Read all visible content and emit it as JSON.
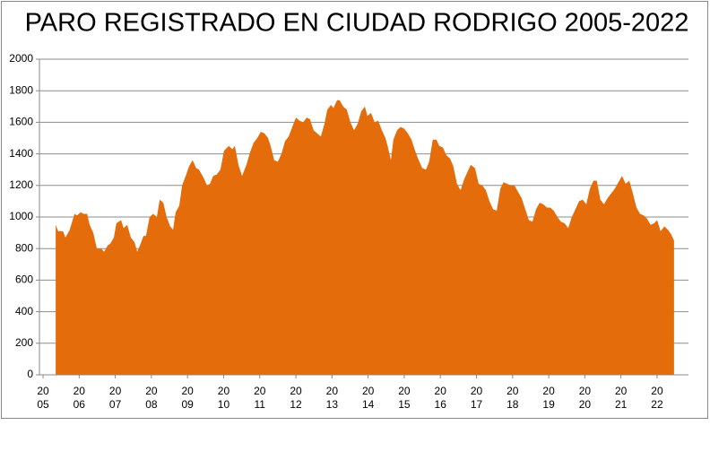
{
  "chart_data": {
    "type": "area",
    "title": "PARO REGISTRADO EN CIUDAD RODRIGO 2005-2022",
    "color": "#e46c0a",
    "grid": true,
    "xlim": [
      2004.9,
      2022.87
    ],
    "ylim": [
      0,
      2000
    ],
    "yticks": [
      0,
      200,
      400,
      600,
      800,
      1000,
      1200,
      1400,
      1600,
      1800,
      2000
    ],
    "xticks": [
      {
        "value": 2005,
        "label": [
          "20",
          "05"
        ]
      },
      {
        "value": 2006,
        "label": [
          "20",
          "06"
        ]
      },
      {
        "value": 2007,
        "label": [
          "20",
          "07"
        ]
      },
      {
        "value": 2008,
        "label": [
          "20",
          "08"
        ]
      },
      {
        "value": 2009,
        "label": [
          "20",
          "09"
        ]
      },
      {
        "value": 2010,
        "label": [
          "20",
          "10"
        ]
      },
      {
        "value": 2011,
        "label": [
          "20",
          "11"
        ]
      },
      {
        "value": 2012,
        "label": [
          "20",
          "12"
        ]
      },
      {
        "value": 2013,
        "label": [
          "20",
          "13"
        ]
      },
      {
        "value": 2014,
        "label": [
          "20",
          "14"
        ]
      },
      {
        "value": 2015,
        "label": [
          "20",
          "15"
        ]
      },
      {
        "value": 2016,
        "label": [
          "20",
          "16"
        ]
      },
      {
        "value": 2017,
        "label": [
          "20",
          "17"
        ]
      },
      {
        "value": 2018,
        "label": [
          "20",
          "18"
        ]
      },
      {
        "value": 2019,
        "label": [
          "20",
          "19"
        ]
      },
      {
        "value": 2020,
        "label": [
          "20",
          "20"
        ]
      },
      {
        "value": 2021,
        "label": [
          "20",
          "21"
        ]
      },
      {
        "value": 2022,
        "label": [
          "20",
          "22"
        ]
      }
    ],
    "x": [
      2005.35,
      2005.42,
      2005.55,
      2005.62,
      2005.74,
      2005.87,
      2005.94,
      2006.04,
      2006.12,
      2006.22,
      2006.29,
      2006.39,
      2006.49,
      2006.61,
      2006.69,
      2006.79,
      2006.86,
      2006.96,
      2007.03,
      2007.16,
      2007.23,
      2007.33,
      2007.43,
      2007.53,
      2007.61,
      2007.7,
      2007.78,
      2007.85,
      2007.95,
      2008.05,
      2008.15,
      2008.23,
      2008.33,
      2008.42,
      2008.52,
      2008.6,
      2008.67,
      2008.77,
      2008.85,
      2008.95,
      2009.04,
      2009.14,
      2009.24,
      2009.32,
      2009.44,
      2009.54,
      2009.62,
      2009.71,
      2009.81,
      2009.91,
      2010.01,
      2010.14,
      2010.24,
      2010.31,
      2010.41,
      2010.51,
      2010.63,
      2010.73,
      2010.83,
      2010.93,
      2011.03,
      2011.13,
      2011.23,
      2011.3,
      2011.4,
      2011.5,
      2011.6,
      2011.7,
      2011.8,
      2011.9,
      2012.0,
      2012.1,
      2012.2,
      2012.3,
      2012.39,
      2012.49,
      2012.59,
      2012.69,
      2012.79,
      2012.87,
      2012.97,
      2013.04,
      2013.14,
      2013.21,
      2013.31,
      2013.41,
      2013.51,
      2013.61,
      2013.71,
      2013.81,
      2013.91,
      2013.98,
      2014.08,
      2014.18,
      2014.28,
      2014.38,
      2014.48,
      2014.55,
      2014.63,
      2014.7,
      2014.8,
      2014.9,
      2015.0,
      2015.1,
      2015.2,
      2015.3,
      2015.4,
      2015.5,
      2015.6,
      2015.69,
      2015.79,
      2015.89,
      2015.97,
      2016.07,
      2016.17,
      2016.27,
      2016.36,
      2016.46,
      2016.56,
      2016.66,
      2016.76,
      2016.84,
      2016.96,
      2017.06,
      2017.16,
      2017.26,
      2017.36,
      2017.46,
      2017.56,
      2017.66,
      2017.75,
      2017.85,
      2017.95,
      2018.05,
      2018.15,
      2018.25,
      2018.35,
      2018.45,
      2018.55,
      2018.65,
      2018.75,
      2018.85,
      2018.95,
      2019.04,
      2019.14,
      2019.24,
      2019.34,
      2019.44,
      2019.54,
      2019.64,
      2019.74,
      2019.84,
      2019.94,
      2020.04,
      2020.14,
      2020.24,
      2020.33,
      2020.43,
      2020.53,
      2020.63,
      2020.73,
      2020.83,
      2020.93,
      2021.03,
      2021.13,
      2021.23,
      2021.33,
      2021.43,
      2021.53,
      2021.63,
      2021.72,
      2021.82,
      2021.92,
      2022.0,
      2022.1,
      2022.2,
      2022.3,
      2022.39,
      2022.47
    ],
    "values": [
      950,
      910,
      910,
      870,
      920,
      1020,
      1010,
      1030,
      1020,
      1020,
      950,
      900,
      800,
      800,
      780,
      820,
      830,
      870,
      960,
      980,
      930,
      950,
      870,
      840,
      780,
      830,
      880,
      880,
      1000,
      1020,
      1000,
      1110,
      1090,
      1000,
      940,
      920,
      1030,
      1070,
      1200,
      1260,
      1320,
      1360,
      1310,
      1300,
      1250,
      1200,
      1210,
      1260,
      1270,
      1300,
      1420,
      1450,
      1430,
      1450,
      1330,
      1260,
      1330,
      1410,
      1470,
      1500,
      1540,
      1530,
      1500,
      1450,
      1360,
      1350,
      1400,
      1480,
      1510,
      1570,
      1630,
      1610,
      1600,
      1630,
      1620,
      1550,
      1530,
      1510,
      1590,
      1680,
      1710,
      1690,
      1740,
      1740,
      1700,
      1680,
      1600,
      1550,
      1590,
      1670,
      1700,
      1640,
      1660,
      1600,
      1610,
      1550,
      1500,
      1440,
      1360,
      1490,
      1550,
      1570,
      1560,
      1530,
      1490,
      1420,
      1360,
      1310,
      1300,
      1350,
      1490,
      1490,
      1450,
      1440,
      1390,
      1370,
      1320,
      1210,
      1170,
      1240,
      1290,
      1330,
      1310,
      1210,
      1200,
      1170,
      1100,
      1050,
      1040,
      1180,
      1220,
      1210,
      1200,
      1200,
      1160,
      1120,
      1050,
      980,
      970,
      1050,
      1090,
      1080,
      1060,
      1060,
      1040,
      1000,
      970,
      960,
      930,
      1000,
      1050,
      1100,
      1110,
      1080,
      1180,
      1230,
      1230,
      1110,
      1080,
      1120,
      1150,
      1180,
      1220,
      1260,
      1210,
      1230,
      1150,
      1060,
      1020,
      1010,
      990,
      950,
      960,
      980,
      910,
      940,
      920,
      890,
      850
    ]
  }
}
